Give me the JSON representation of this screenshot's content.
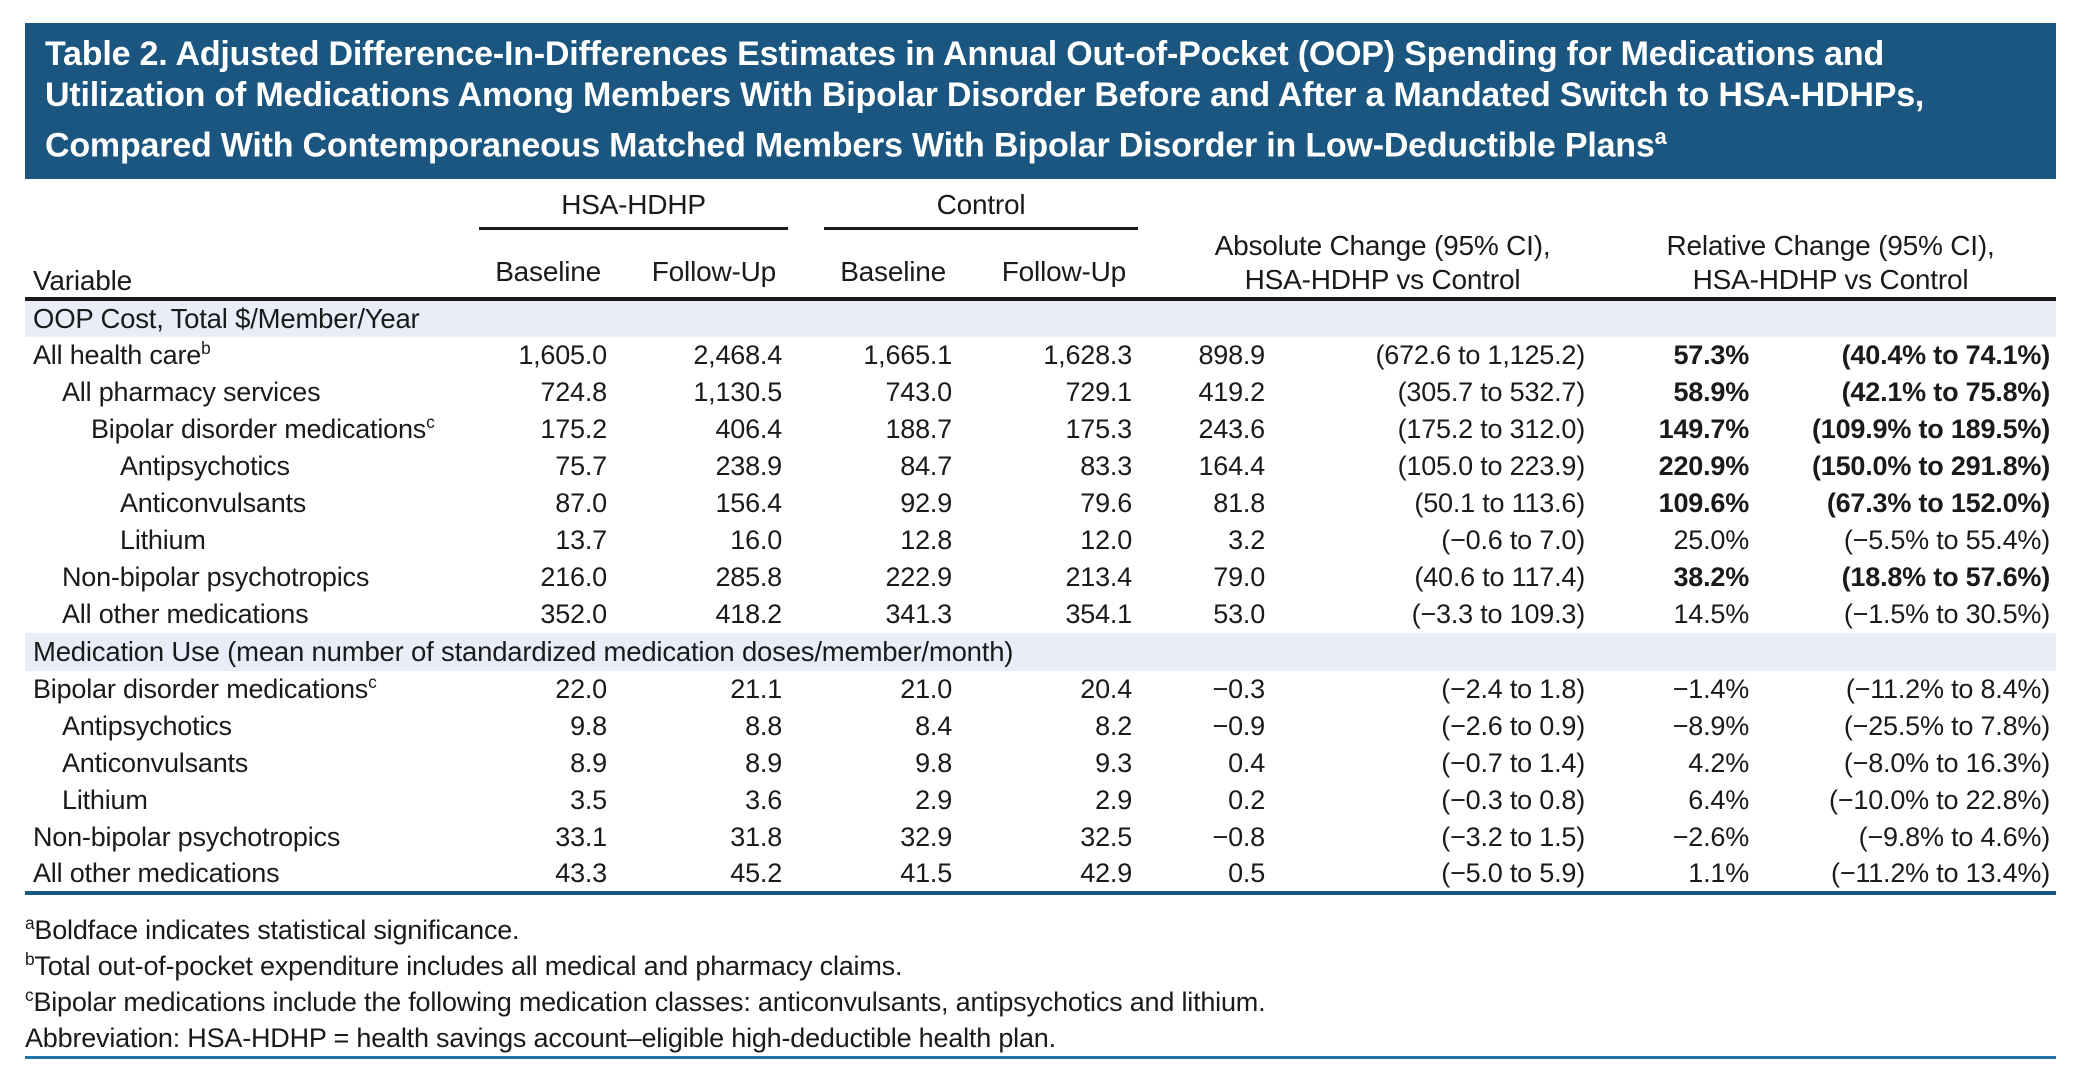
{
  "title": {
    "lines": [
      "Table 2. Adjusted Difference-In-Differences Estimates in Annual Out-of-Pocket (OOP) Spending for Medications and",
      "Utilization of Medications Among Members With Bipolar Disorder Before and After a Mandated Switch to HSA-HDHPs,",
      "Compared With Contemporaneous Matched Members With Bipolar Disorder in Low-Deductible Plans"
    ],
    "sup": "a"
  },
  "header": {
    "variable": "Variable",
    "group1": "HSA-HDHP",
    "group2": "Control",
    "sub_baseline": "Baseline",
    "sub_followup": "Follow-Up",
    "abs_line1": "Absolute Change (95% CI),",
    "abs_line2": "HSA-HDHP vs Control",
    "rel_line1": "Relative Change (95% CI),",
    "rel_line2": "HSA-HDHP vs Control"
  },
  "sections": [
    {
      "label": "OOP Cost, Total $/Member/Year",
      "rows": [
        {
          "label": "All health care",
          "sup": "b",
          "indent": 0,
          "bold": true,
          "values": [
            "1,605.0",
            "2,468.4",
            "1,665.1",
            "1,628.3",
            "898.9",
            "(672.6 to 1,125.2)",
            "57.3%",
            "(40.4% to 74.1%)"
          ]
        },
        {
          "label": "All pharmacy services",
          "sup": "",
          "indent": 1,
          "bold": true,
          "values": [
            "724.8",
            "1,130.5",
            "743.0",
            "729.1",
            "419.2",
            "(305.7 to 532.7)",
            "58.9%",
            "(42.1% to 75.8%)"
          ]
        },
        {
          "label": "Bipolar disorder medications",
          "sup": "c",
          "indent": 2,
          "bold": true,
          "values": [
            "175.2",
            "406.4",
            "188.7",
            "175.3",
            "243.6",
            "(175.2 to 312.0)",
            "149.7%",
            "(109.9% to 189.5%)"
          ]
        },
        {
          "label": "Antipsychotics",
          "sup": "",
          "indent": 3,
          "bold": true,
          "values": [
            "75.7",
            "238.9",
            "84.7",
            "83.3",
            "164.4",
            "(105.0 to 223.9)",
            "220.9%",
            "(150.0% to 291.8%)"
          ]
        },
        {
          "label": "Anticonvulsants",
          "sup": "",
          "indent": 3,
          "bold": true,
          "values": [
            "87.0",
            "156.4",
            "92.9",
            "79.6",
            "81.8",
            "(50.1 to 113.6)",
            "109.6%",
            "(67.3% to 152.0%)"
          ]
        },
        {
          "label": "Lithium",
          "sup": "",
          "indent": 3,
          "bold": false,
          "values": [
            "13.7",
            "16.0",
            "12.8",
            "12.0",
            "3.2",
            "(−0.6 to 7.0)",
            "25.0%",
            "(−5.5% to 55.4%)"
          ]
        },
        {
          "label": "Non-bipolar psychotropics",
          "sup": "",
          "indent": 1,
          "bold": true,
          "values": [
            "216.0",
            "285.8",
            "222.9",
            "213.4",
            "79.0",
            "(40.6 to 117.4)",
            "38.2%",
            "(18.8% to 57.6%)"
          ]
        },
        {
          "label": "All other medications",
          "sup": "",
          "indent": 1,
          "bold": false,
          "values": [
            "352.0",
            "418.2",
            "341.3",
            "354.1",
            "53.0",
            "(−3.3 to 109.3)",
            "14.5%",
            "(−1.5% to 30.5%)"
          ]
        }
      ]
    },
    {
      "label": "Medication Use (mean number of standardized medication doses/member/month)",
      "rows": [
        {
          "label": "Bipolar disorder medications",
          "sup": "c",
          "indent": 0,
          "bold": false,
          "values": [
            "22.0",
            "21.1",
            "21.0",
            "20.4",
            "−0.3",
            "(−2.4 to 1.8)",
            "−1.4%",
            "(−11.2% to 8.4%)"
          ]
        },
        {
          "label": "Antipsychotics",
          "sup": "",
          "indent": 1,
          "bold": false,
          "values": [
            "9.8",
            "8.8",
            "8.4",
            "8.2",
            "−0.9",
            "(−2.6 to 0.9)",
            "−8.9%",
            "(−25.5% to 7.8%)"
          ]
        },
        {
          "label": "Anticonvulsants",
          "sup": "",
          "indent": 1,
          "bold": false,
          "values": [
            "8.9",
            "8.9",
            "9.8",
            "9.3",
            "0.4",
            "(−0.7 to 1.4)",
            "4.2%",
            "(−8.0% to 16.3%)"
          ]
        },
        {
          "label": "Lithium",
          "sup": "",
          "indent": 1,
          "bold": false,
          "values": [
            "3.5",
            "3.6",
            "2.9",
            "2.9",
            "0.2",
            "(−0.3 to 0.8)",
            "6.4%",
            "(−10.0% to 22.8%)"
          ]
        },
        {
          "label": "Non-bipolar psychotropics",
          "sup": "",
          "indent": 0,
          "bold": false,
          "values": [
            "33.1",
            "31.8",
            "32.9",
            "32.5",
            "−0.8",
            "(−3.2 to 1.5)",
            "−2.6%",
            "(−9.8% to 4.6%)"
          ]
        },
        {
          "label": "All other medications",
          "sup": "",
          "indent": 0,
          "bold": false,
          "values": [
            "43.3",
            "45.2",
            "41.5",
            "42.9",
            "0.5",
            "(−5.0 to 5.9)",
            "1.1%",
            "(−11.2% to 13.4%)"
          ]
        }
      ]
    }
  ],
  "footnotes": [
    {
      "sup": "a",
      "text": "Boldface indicates statistical significance."
    },
    {
      "sup": "b",
      "text": "Total out-of-pocket expenditure includes all medical and pharmacy claims."
    },
    {
      "sup": "c",
      "text": "Bipolar medications include the following medication classes: anticonvulsants, antipsychotics and lithium."
    },
    {
      "sup": "",
      "text": "Abbreviation: HSA-HDHP = health savings account–eligible high-deductible health plan."
    }
  ],
  "colors": {
    "title_bar_bg": "#1a567f",
    "title_text": "#ffffff",
    "band_bg": "#e8edf8",
    "rule_dark": "#1a1a1a",
    "table_end_rule": "#175a80",
    "bottom_rule": "#2173a5",
    "text": "#1a1a1a"
  }
}
